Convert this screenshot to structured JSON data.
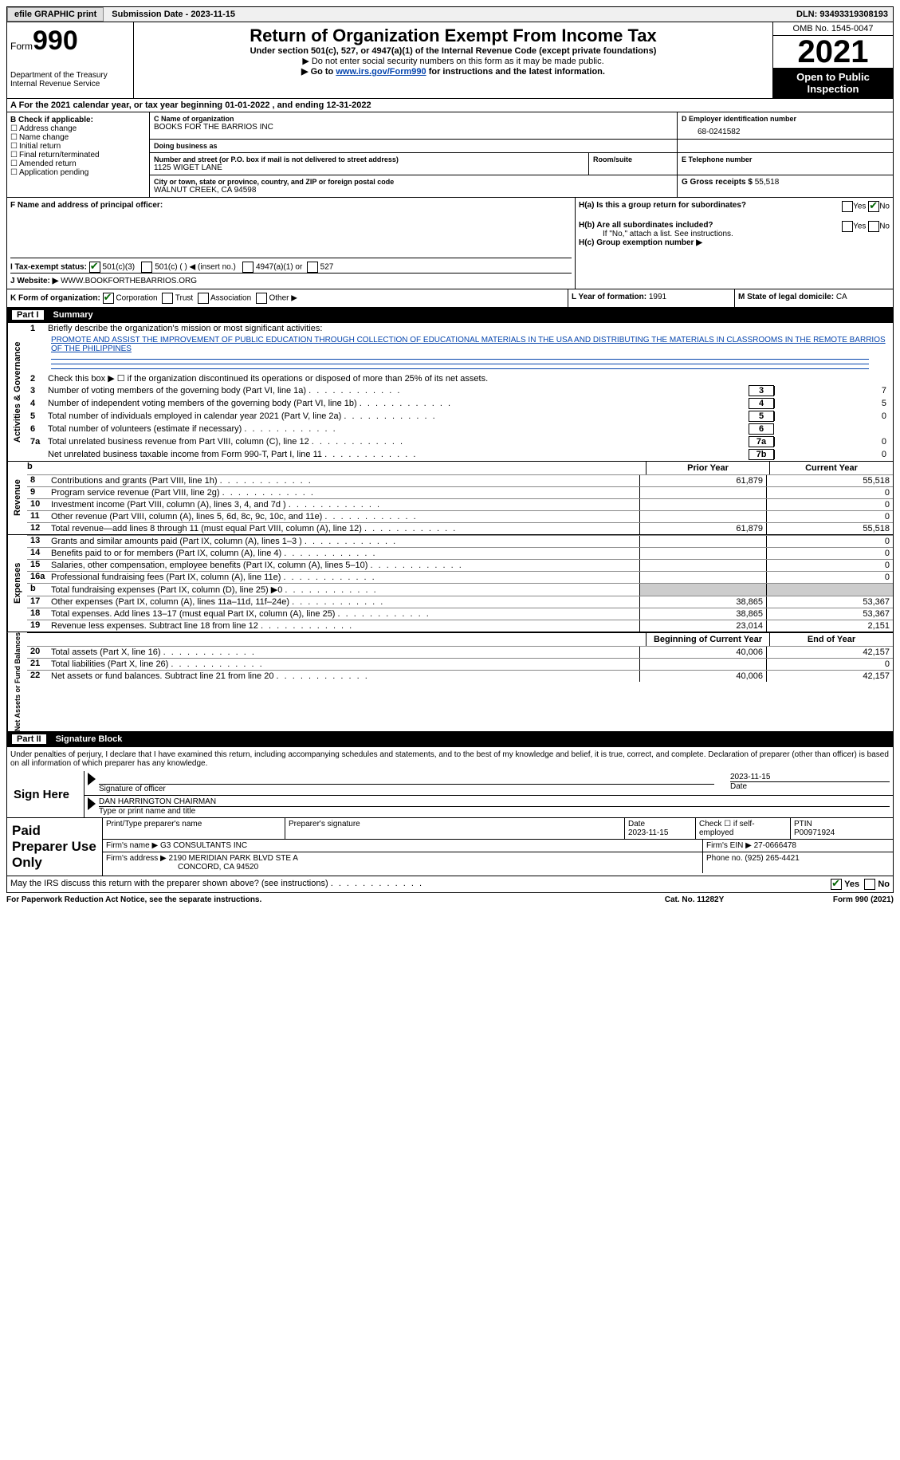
{
  "topbar": {
    "efile": "efile GRAPHIC print",
    "submission": "Submission Date - 2023-11-15",
    "dln": "DLN: 93493319308193"
  },
  "header": {
    "form_prefix": "Form",
    "form_no": "990",
    "dept": "Department of the Treasury",
    "irs": "Internal Revenue Service",
    "title": "Return of Organization Exempt From Income Tax",
    "subtitle": "Under section 501(c), 527, or 4947(a)(1) of the Internal Revenue Code (except private foundations)",
    "note1": "▶ Do not enter social security numbers on this form as it may be made public.",
    "note2_pre": "▶ Go to ",
    "note2_link": "www.irs.gov/Form990",
    "note2_post": " for instructions and the latest information.",
    "omb": "OMB No. 1545-0047",
    "year": "2021",
    "open": "Open to Public Inspection"
  },
  "row_a": "A For the 2021 calendar year, or tax year beginning 01-01-2022   , and ending 12-31-2022",
  "col_b": {
    "label": "B Check if applicable:",
    "opts": [
      "Address change",
      "Name change",
      "Initial return",
      "Final return/terminated",
      "Amended return",
      "Application pending"
    ]
  },
  "org": {
    "name_lbl": "C Name of organization",
    "name": "BOOKS FOR THE BARRIOS INC",
    "dba_lbl": "Doing business as",
    "dba": "",
    "street_lbl": "Number and street (or P.O. box if mail is not delivered to street address)",
    "street": "1125 WIGET LANE",
    "room_lbl": "Room/suite",
    "city_lbl": "City or town, state or province, country, and ZIP or foreign postal code",
    "city": "WALNUT CREEK, CA  94598"
  },
  "ein": {
    "lbl": "D Employer identification number",
    "val": "68-0241582"
  },
  "phone": {
    "lbl": "E Telephone number",
    "val": ""
  },
  "gross": {
    "lbl": "G Gross receipts $",
    "val": "55,518"
  },
  "f": {
    "lbl": "F Name and address of principal officer:",
    "val": ""
  },
  "h": {
    "ha": "H(a)  Is this a group return for subordinates?",
    "hb": "H(b)  Are all subordinates included?",
    "hb_note": "If \"No,\" attach a list. See instructions.",
    "hc": "H(c)  Group exemption number ▶",
    "yes": "Yes",
    "no": "No"
  },
  "i": {
    "lbl": "I   Tax-exempt status:",
    "o1": "501(c)(3)",
    "o2": "501(c) (  ) ◀ (insert no.)",
    "o3": "4947(a)(1) or",
    "o4": "527"
  },
  "j": {
    "lbl": "J  Website: ▶",
    "val": "WWW.BOOKFORTHEBARRIOS.ORG"
  },
  "k": {
    "lbl": "K Form of organization:",
    "o1": "Corporation",
    "o2": "Trust",
    "o3": "Association",
    "o4": "Other ▶"
  },
  "l": {
    "lbl": "L Year of formation:",
    "val": "1991"
  },
  "m": {
    "lbl": "M State of legal domicile:",
    "val": "CA"
  },
  "part1": {
    "num": "Part I",
    "title": "Summary"
  },
  "side": {
    "ag": "Activities & Governance",
    "rev": "Revenue",
    "exp": "Expenses",
    "net": "Net Assets or Fund Balances"
  },
  "s1": {
    "lbl": "Briefly describe the organization's mission or most significant activities:",
    "mission": "PROMOTE AND ASSIST THE IMPROVEMENT OF PUBLIC EDUCATION THROUGH COLLECTION OF EDUCATIONAL MATERIALS IN THE USA AND DISTRIBUTING THE MATERIALS IN CLASSROOMS IN THE REMOTE BARRIOS OF THE PHILIPPINES"
  },
  "lines_ag": [
    {
      "n": "2",
      "t": "Check this box ▶ ☐ if the organization discontinued its operations or disposed of more than 25% of its net assets."
    },
    {
      "n": "3",
      "t": "Number of voting members of the governing body (Part VI, line 1a)",
      "box": "3",
      "v": "7"
    },
    {
      "n": "4",
      "t": "Number of independent voting members of the governing body (Part VI, line 1b)",
      "box": "4",
      "v": "5"
    },
    {
      "n": "5",
      "t": "Total number of individuals employed in calendar year 2021 (Part V, line 2a)",
      "box": "5",
      "v": "0"
    },
    {
      "n": "6",
      "t": "Total number of volunteers (estimate if necessary)",
      "box": "6",
      "v": ""
    },
    {
      "n": "7a",
      "t": "Total unrelated business revenue from Part VIII, column (C), line 12",
      "box": "7a",
      "v": "0"
    },
    {
      "n": "",
      "t": "Net unrelated business taxable income from Form 990-T, Part I, line 11",
      "box": "7b",
      "v": "0"
    }
  ],
  "col_hdr": {
    "py": "Prior Year",
    "cy": "Current Year"
  },
  "lines_rev": [
    {
      "n": "8",
      "t": "Contributions and grants (Part VIII, line 1h)",
      "py": "61,879",
      "cy": "55,518"
    },
    {
      "n": "9",
      "t": "Program service revenue (Part VIII, line 2g)",
      "py": "",
      "cy": "0"
    },
    {
      "n": "10",
      "t": "Investment income (Part VIII, column (A), lines 3, 4, and 7d )",
      "py": "",
      "cy": "0"
    },
    {
      "n": "11",
      "t": "Other revenue (Part VIII, column (A), lines 5, 6d, 8c, 9c, 10c, and 11e)",
      "py": "",
      "cy": "0"
    },
    {
      "n": "12",
      "t": "Total revenue—add lines 8 through 11 (must equal Part VIII, column (A), line 12)",
      "py": "61,879",
      "cy": "55,518"
    }
  ],
  "lines_exp": [
    {
      "n": "13",
      "t": "Grants and similar amounts paid (Part IX, column (A), lines 1–3 )",
      "py": "",
      "cy": "0"
    },
    {
      "n": "14",
      "t": "Benefits paid to or for members (Part IX, column (A), line 4)",
      "py": "",
      "cy": "0"
    },
    {
      "n": "15",
      "t": "Salaries, other compensation, employee benefits (Part IX, column (A), lines 5–10)",
      "py": "",
      "cy": "0"
    },
    {
      "n": "16a",
      "t": "Professional fundraising fees (Part IX, column (A), line 11e)",
      "py": "",
      "cy": "0"
    },
    {
      "n": "b",
      "t": "Total fundraising expenses (Part IX, column (D), line 25) ▶0",
      "py": "shade",
      "cy": "shade"
    },
    {
      "n": "17",
      "t": "Other expenses (Part IX, column (A), lines 11a–11d, 11f–24e)",
      "py": "38,865",
      "cy": "53,367"
    },
    {
      "n": "18",
      "t": "Total expenses. Add lines 13–17 (must equal Part IX, column (A), line 25)",
      "py": "38,865",
      "cy": "53,367"
    },
    {
      "n": "19",
      "t": "Revenue less expenses. Subtract line 18 from line 12",
      "py": "23,014",
      "cy": "2,151"
    }
  ],
  "col_hdr2": {
    "py": "Beginning of Current Year",
    "cy": "End of Year"
  },
  "lines_net": [
    {
      "n": "20",
      "t": "Total assets (Part X, line 16)",
      "py": "40,006",
      "cy": "42,157"
    },
    {
      "n": "21",
      "t": "Total liabilities (Part X, line 26)",
      "py": "",
      "cy": "0"
    },
    {
      "n": "22",
      "t": "Net assets or fund balances. Subtract line 21 from line 20",
      "py": "40,006",
      "cy": "42,157"
    }
  ],
  "part2": {
    "num": "Part II",
    "title": "Signature Block"
  },
  "sig": {
    "decl": "Under penalties of perjury, I declare that I have examined this return, including accompanying schedules and statements, and to the best of my knowledge and belief, it is true, correct, and complete. Declaration of preparer (other than officer) is based on all information of which preparer has any knowledge.",
    "sign_here": "Sign Here",
    "sig_officer": "Signature of officer",
    "date": "Date",
    "date_val": "2023-11-15",
    "name": "DAN HARRINGTON  CHAIRMAN",
    "name_lbl": "Type or print name and title"
  },
  "prep": {
    "title": "Paid Preparer Use Only",
    "h1": "Print/Type preparer's name",
    "h2": "Preparer's signature",
    "h3": "Date",
    "h3v": "2023-11-15",
    "h4": "Check ☐ if self-employed",
    "h5": "PTIN",
    "h5v": "P00971924",
    "firm_lbl": "Firm's name    ▶",
    "firm": "G3 CONSULTANTS INC",
    "ein_lbl": "Firm's EIN ▶",
    "ein": "27-0666478",
    "addr_lbl": "Firm's address ▶",
    "addr1": "2190 MERIDIAN PARK BLVD STE A",
    "addr2": "CONCORD, CA  94520",
    "ph_lbl": "Phone no.",
    "ph": "(925) 265-4421"
  },
  "footer": {
    "q": "May the IRS discuss this return with the preparer shown above? (see instructions)",
    "yes": "Yes",
    "no": "No"
  },
  "bottom": {
    "l": "For Paperwork Reduction Act Notice, see the separate instructions.",
    "c": "Cat. No. 11282Y",
    "r": "Form 990 (2021)"
  }
}
